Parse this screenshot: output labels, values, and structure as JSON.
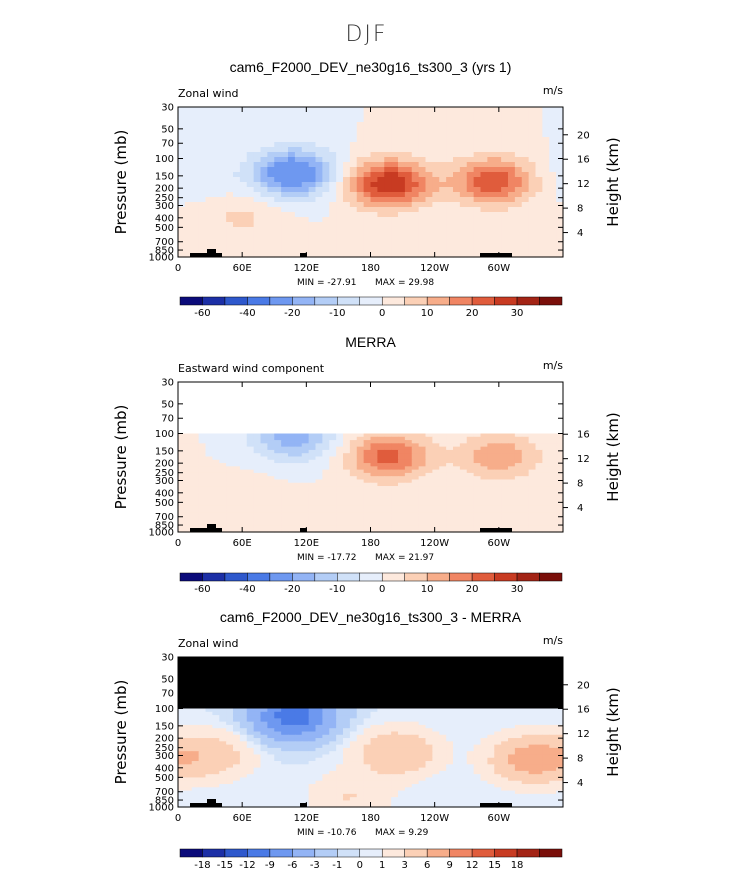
{
  "page_title": "DJF",
  "chart_data": [
    {
      "type": "heatmap",
      "title": "cam6_F2000_DEV_ne30g16_ts300_3 (yrs 1)",
      "variable": "Zonal wind",
      "units": "m/s",
      "ylabel": "Pressure (mb)",
      "y2label": "Height (km)",
      "y_ticks": [
        "30",
        "50",
        "70",
        "100",
        "150",
        "200",
        "250",
        "300",
        "400",
        "500",
        "700",
        "850",
        "1000"
      ],
      "y2_ticks": [
        "20",
        "16",
        "12",
        "8",
        "4"
      ],
      "x_ticks": [
        "0",
        "60E",
        "120E",
        "180",
        "120W",
        "60W"
      ],
      "data_top_mb": 30,
      "min_text": "MIN = -27.91",
      "max_text": "MAX =   29.98",
      "min": -27.91,
      "max": 29.98,
      "colorbar": {
        "levels": [
          -70,
          -60,
          -50,
          -40,
          -30,
          -20,
          -15,
          -10,
          -5,
          0,
          5,
          10,
          15,
          20,
          25,
          30,
          35
        ],
        "tick_labels": [
          "-60",
          "-40",
          "-20",
          "-10",
          "0",
          "10",
          "20",
          "30"
        ],
        "colors": [
          "#0b0b7a",
          "#1c2fa6",
          "#2e58cc",
          "#4a7ae6",
          "#6e98f0",
          "#93b4f5",
          "#b3cdf6",
          "#d0e1f8",
          "#e6eefb",
          "#fde9dd",
          "#fbd0b6",
          "#f7ad8a",
          "#f08563",
          "#e05c3c",
          "#c83b22",
          "#a32415",
          "#7a0f0a"
        ]
      },
      "features": [
        {
          "lon": 108,
          "p": 140,
          "v": -27.9
        },
        {
          "lon": 197,
          "p": 180,
          "v": 30.0
        },
        {
          "lon": 295,
          "p": 170,
          "v": 24.0
        },
        {
          "lon": 60,
          "p": 400,
          "v": 6.0
        },
        {
          "lon": 15,
          "p": 150,
          "v": -4.0
        }
      ]
    },
    {
      "type": "heatmap",
      "title": "MERRA",
      "variable": "Eastward wind component",
      "units": "m/s",
      "ylabel": "Pressure (mb)",
      "y2label": "Height (km)",
      "y_ticks": [
        "30",
        "50",
        "70",
        "100",
        "150",
        "200",
        "250",
        "300",
        "400",
        "500",
        "700",
        "850",
        "1000"
      ],
      "y2_ticks": [
        "16",
        "12",
        "8",
        "4"
      ],
      "x_ticks": [
        "0",
        "60E",
        "120E",
        "180",
        "120W",
        "60W"
      ],
      "data_top_mb": 100,
      "min_text": "MIN = -17.72",
      "max_text": "MAX =   21.97",
      "min": -17.72,
      "max": 21.97,
      "colorbar": {
        "levels": [
          -70,
          -60,
          -50,
          -40,
          -30,
          -20,
          -15,
          -10,
          -5,
          0,
          5,
          10,
          15,
          20,
          25,
          30,
          35
        ],
        "tick_labels": [
          "-60",
          "-40",
          "-20",
          "-10",
          "0",
          "10",
          "20",
          "30"
        ],
        "colors": [
          "#0b0b7a",
          "#1c2fa6",
          "#2e58cc",
          "#4a7ae6",
          "#6e98f0",
          "#93b4f5",
          "#b3cdf6",
          "#d0e1f8",
          "#e6eefb",
          "#fde9dd",
          "#fbd0b6",
          "#f7ad8a",
          "#f08563",
          "#e05c3c",
          "#c83b22",
          "#a32415",
          "#7a0f0a"
        ]
      },
      "features": [
        {
          "lon": 108,
          "p": 110,
          "v": -17.7
        },
        {
          "lon": 197,
          "p": 170,
          "v": 22.0
        },
        {
          "lon": 300,
          "p": 170,
          "v": 14.0
        },
        {
          "lon": 60,
          "p": 500,
          "v": 5.0
        }
      ]
    },
    {
      "type": "heatmap",
      "title": "cam6_F2000_DEV_ne30g16_ts300_3 - MERRA",
      "variable": "Zonal wind",
      "units": "m/s",
      "ylabel": "Pressure (mb)",
      "y2label": "Height (km)",
      "y_ticks": [
        "30",
        "50",
        "70",
        "100",
        "150",
        "200",
        "250",
        "300",
        "400",
        "500",
        "700",
        "850",
        "1000"
      ],
      "y2_ticks": [
        "20",
        "16",
        "12",
        "8",
        "4"
      ],
      "x_ticks": [
        "0",
        "60E",
        "120E",
        "180",
        "120W",
        "60W"
      ],
      "data_top_mb": 100,
      "min_text": "MIN = -10.76",
      "max_text": "MAX =    9.29",
      "min": -10.76,
      "max": 9.29,
      "colorbar": {
        "levels": [
          -21,
          -18,
          -15,
          -12,
          -9,
          -6,
          -3,
          -1,
          0,
          1,
          3,
          6,
          9,
          12,
          15,
          18,
          21
        ],
        "tick_labels": [
          "-18",
          "-15",
          "-12",
          "-9",
          "-6",
          "-3",
          "-1",
          "0",
          "1",
          "3",
          "6",
          "9",
          "12",
          "15",
          "18"
        ],
        "colors": [
          "#0b0b7a",
          "#1c2fa6",
          "#2e58cc",
          "#4a7ae6",
          "#6e98f0",
          "#93b4f5",
          "#b3cdf6",
          "#d0e1f8",
          "#e6eefb",
          "#fde9dd",
          "#fbd0b6",
          "#f7ad8a",
          "#f08563",
          "#e05c3c",
          "#c83b22",
          "#a32415",
          "#7a0f0a"
        ]
      },
      "features": [
        {
          "lon": 108,
          "p": 120,
          "v": -10.7
        },
        {
          "lon": 205,
          "p": 280,
          "v": 6.0
        },
        {
          "lon": 30,
          "p": 300,
          "v": 5.0
        },
        {
          "lon": 330,
          "p": 330,
          "v": 8.0
        },
        {
          "lon": 160,
          "p": 800,
          "v": 3.0
        }
      ]
    }
  ]
}
